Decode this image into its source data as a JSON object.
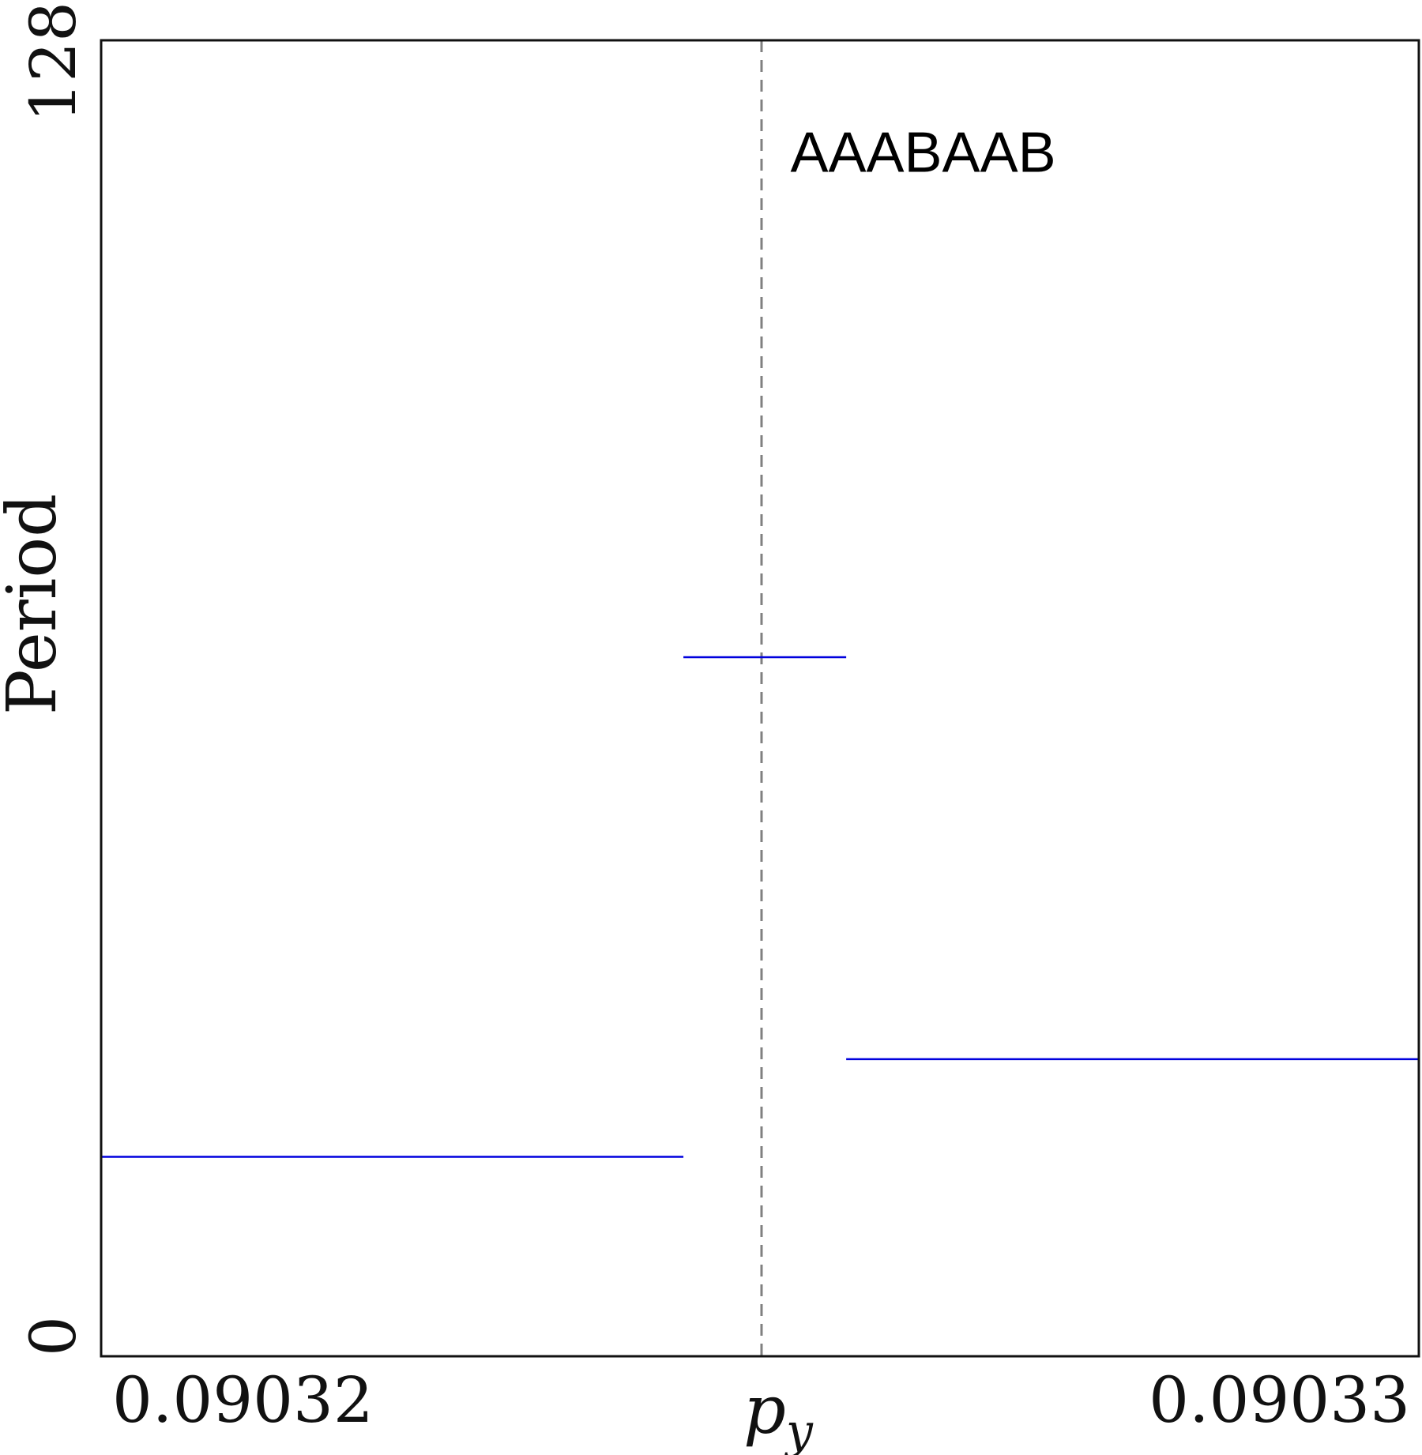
{
  "chart_data": {
    "type": "line",
    "xlabel": "p_y",
    "xlabel_main": "p",
    "xlabel_sub": "y",
    "ylabel": "Period",
    "xlim": [
      0.090319929,
      0.090330047
    ],
    "ylim": [
      0,
      128
    ],
    "xticks": [
      {
        "value": 0.09032,
        "label": "0.09032"
      },
      {
        "value": 0.09033,
        "label": "0.09033"
      }
    ],
    "yticks": [
      {
        "value": 0,
        "label": "0"
      },
      {
        "value": 128,
        "label": "128"
      }
    ],
    "grid": false,
    "series": [
      {
        "color": "#0000dd",
        "segments": [
          {
            "x": [
              0.090319929,
              0.0903244
            ],
            "y": [
              19.4,
              19.4
            ]
          },
          {
            "x": [
              0.0903244,
              0.09032565
            ],
            "y": [
              68.0,
              68.0
            ]
          },
          {
            "x": [
              0.09032565,
              0.090330047
            ],
            "y": [
              28.9,
              28.9
            ]
          }
        ]
      }
    ],
    "vline": {
      "x": 0.090325,
      "color": "#808080",
      "style": "dashed"
    },
    "annotations": [
      {
        "text": "AAABAAB",
        "x": 0.0903251,
        "y": 117.5
      }
    ]
  }
}
